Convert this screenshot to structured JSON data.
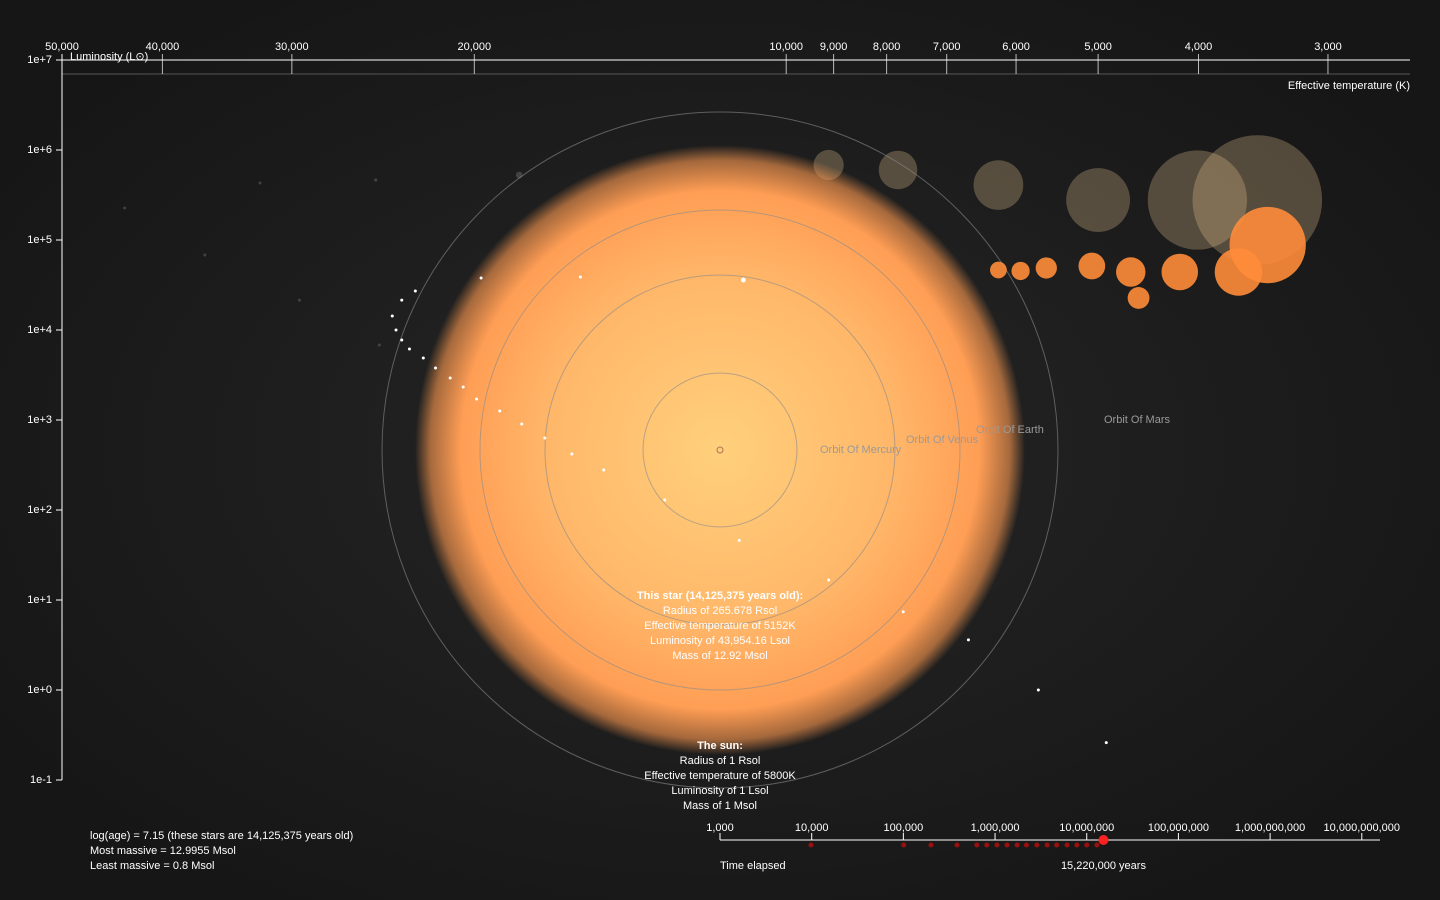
{
  "chart_data": {
    "type": "scatter",
    "x_label": "Effective temperature (K)",
    "y_label": "Luminosity (L⊙)",
    "log_x": true,
    "log_y": true,
    "xlim": [
      50000,
      2500
    ],
    "xticks": [
      {
        "value": 50000,
        "label": "50,000"
      },
      {
        "value": 40000,
        "label": "40,000"
      },
      {
        "value": 30000,
        "label": "30,000"
      },
      {
        "value": 20000,
        "label": "20,000"
      },
      {
        "value": 10000,
        "label": "10,000"
      },
      {
        "value": 9000,
        "label": "9,000"
      },
      {
        "value": 8000,
        "label": "8,000"
      },
      {
        "value": 7000,
        "label": "7,000"
      },
      {
        "value": 6000,
        "label": "6,000"
      },
      {
        "value": 5000,
        "label": "5,000"
      },
      {
        "value": 4000,
        "label": "4,000"
      },
      {
        "value": 3000,
        "label": "3,000"
      }
    ],
    "ylim": [
      0.1,
      10000000
    ],
    "yticks": [
      {
        "value": 10000000,
        "label": "1e+7"
      },
      {
        "value": 1000000,
        "label": "1e+6"
      },
      {
        "value": 100000,
        "label": "1e+5"
      },
      {
        "value": 10000,
        "label": "1e+4"
      },
      {
        "value": 1000,
        "label": "1e+3"
      },
      {
        "value": 100,
        "label": "1e+2"
      },
      {
        "value": 10,
        "label": "1e+1"
      },
      {
        "value": 1,
        "label": "1e+0"
      },
      {
        "value": 0.1,
        "label": "1e-1"
      }
    ],
    "series": [
      {
        "color": "#8a8a8a",
        "opacity": 0.35,
        "x": [
          43500,
          32200,
          24900,
          18100,
          36400,
          29500,
          24700
        ],
        "y": [
          227000,
          430000,
          464000,
          527000,
          68100,
          21500,
          6810
        ]
      },
      {
        "color": "#e0c090",
        "opacity": 0.3,
        "x": [
          9100,
          7800,
          6240,
          5000,
          4010,
          3510
        ],
        "y": [
          681000,
          600000,
          408000,
          278000,
          278000,
          278000
        ]
      },
      {
        "color": "#ffffff",
        "opacity": 1,
        "x": [
          4910,
          5710,
          6670,
          7710,
          9100,
          11100,
          13100,
          15000,
          16100,
          17100,
          18000,
          18900,
          19900,
          20500,
          21100,
          21800,
          22400,
          23100,
          23500,
          23800,
          24000,
          23500,
          22800,
          19700,
          15800,
          11000
        ],
        "y": [
          0.26,
          1.0,
          3.6,
          7.4,
          16.7,
          46,
          129,
          278,
          419,
          631,
          903,
          1259,
          1710,
          2330,
          2930,
          3780,
          4890,
          6150,
          7740,
          10000,
          14300,
          21500,
          27100,
          37800,
          38800,
          35900
        ]
      },
      {
        "color": "#ff8c3a",
        "opacity": 0.9,
        "x": [
          6240,
          5940,
          5610,
          5070,
          4650,
          4570,
          4170,
          3660,
          3430
        ],
        "y": [
          46400,
          45300,
          48900,
          51400,
          44100,
          22700,
          44100,
          44100,
          87900
        ]
      }
    ]
  },
  "focus_star": {
    "title": "This star (14,125,375 years old):",
    "lines": [
      "Radius of 265.678 Rsol",
      "Effective temperature of 5152K",
      "Luminosity of 43,954.16 Lsol",
      "Mass of 12.92 Msol"
    ]
  },
  "sun": {
    "title": "The sun:",
    "lines": [
      "Radius of 1 Rsol",
      "Effective temperature of 5800K",
      "Luminosity of 1 Lsol",
      "Mass of 1 Msol"
    ]
  },
  "orbits": [
    "Orbit Of Mercury",
    "Orbit Of Venus",
    "Orbit Of Earth",
    "Orbit Of Mars"
  ],
  "stats": [
    "log(age) = 7.15 (these stars are 14,125,375 years old)",
    "Most massive = 12.9955 Msol",
    "Least massive = 0.8 Msol"
  ],
  "timeline": {
    "type": "scatter",
    "label": "Time elapsed",
    "log_x": true,
    "xlim": [
      1000,
      15800000000
    ],
    "xticks": [
      {
        "value": 1000,
        "label": "1,000"
      },
      {
        "value": 10000,
        "label": "10,000"
      },
      {
        "value": 100000,
        "label": "100,000"
      },
      {
        "value": 1000000,
        "label": "1,000,000"
      },
      {
        "value": 10000000,
        "label": "10,000,000"
      },
      {
        "value": 100000000,
        "label": "100,000,000"
      },
      {
        "value": 1000000000,
        "label": "1,000,000,000"
      },
      {
        "value": 10000000000,
        "label": "10,000,000,000"
      }
    ],
    "events": [
      9820,
      101000,
      200000,
      385000,
      633000,
      813000,
      1050000,
      1350000,
      1740000,
      2200000,
      2860000,
      3700000,
      4700000,
      6100000,
      7800000,
      10000000,
      12900000
    ],
    "current": 15220000,
    "current_label": "15,220,000 years"
  }
}
